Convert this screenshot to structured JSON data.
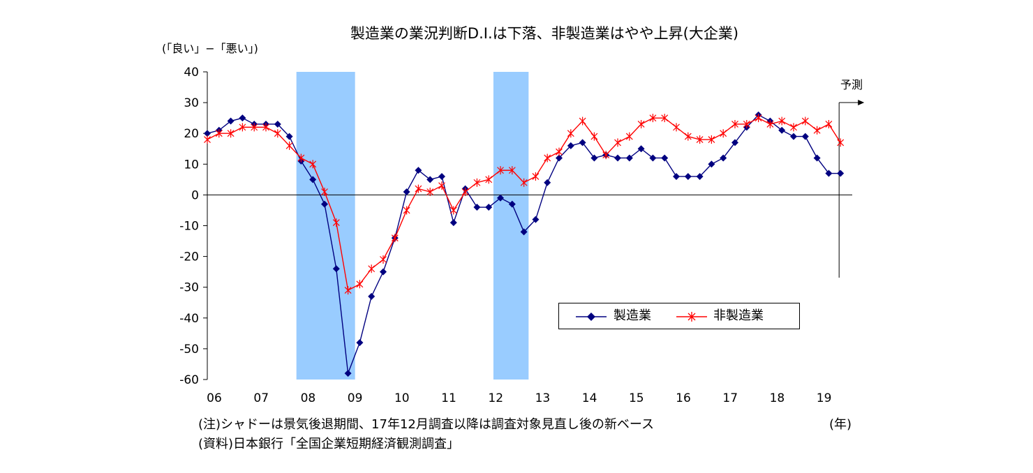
{
  "title": "製造業の業況判断D.I.は下落、非製造業はやや上昇(大企業)",
  "unit_label": "(「良い」−「悪い」)",
  "forecast_label": "予測",
  "year_unit_label": "(年)",
  "note": "(注)シャドーは景気後退期間、17年12月調査以降は調査対象見直し後の新ベース",
  "source": "(資料)日本銀行「全国企業短期経済観測調査」",
  "chart_data": {
    "type": "line",
    "title": "製造業の業況判断D.I.は下落、非製造業はやや上昇(大企業)",
    "ylabel": "(「良い」−「悪い」)",
    "xlabel": "",
    "ylim": [
      -60,
      40
    ],
    "yticks": [
      40,
      30,
      20,
      10,
      0,
      -10,
      -20,
      -30,
      -40,
      -50,
      -60
    ],
    "x_tick_labels": [
      "06",
      "07",
      "08",
      "09",
      "10",
      "11",
      "12",
      "13",
      "14",
      "15",
      "16",
      "17",
      "18",
      "19"
    ],
    "x_unit": "(年)",
    "period": "quarterly 2006 Q1 – 2019 Q3 (forecast)",
    "shading": [
      {
        "from_year": 2007.9,
        "to_year": 2009.15
      },
      {
        "from_year": 2012.1,
        "to_year": 2012.85
      }
    ],
    "forecast_from_year": 2019.5,
    "legend_placement": "lower-right",
    "grid": false,
    "series": [
      {
        "name": "製造業",
        "color": "#000080",
        "marker": "diamond",
        "values": [
          20,
          21,
          24,
          25,
          23,
          23,
          23,
          19,
          11,
          5,
          -3,
          -24,
          -58,
          -48,
          -33,
          -25,
          -14,
          1,
          8,
          5,
          6,
          -9,
          2,
          -4,
          -4,
          -1,
          -3,
          -12,
          -8,
          4,
          12,
          16,
          17,
          12,
          13,
          12,
          12,
          15,
          12,
          12,
          6,
          6,
          6,
          10,
          12,
          17,
          22,
          26,
          24,
          21,
          19,
          19,
          12,
          7,
          7
        ]
      },
      {
        "name": "非製造業",
        "color": "#ff0000",
        "marker": "cross",
        "values": [
          18,
          20,
          20,
          22,
          22,
          22,
          20,
          16,
          12,
          10,
          1,
          -9,
          -31,
          -29,
          -24,
          -21,
          -14,
          -5,
          2,
          1,
          3,
          -5,
          1,
          4,
          5,
          8,
          8,
          4,
          6,
          12,
          14,
          20,
          24,
          19,
          13,
          17,
          19,
          23,
          25,
          25,
          22,
          19,
          18,
          18,
          20,
          23,
          23,
          25,
          23,
          24,
          22,
          24,
          21,
          23,
          17
        ]
      }
    ]
  }
}
